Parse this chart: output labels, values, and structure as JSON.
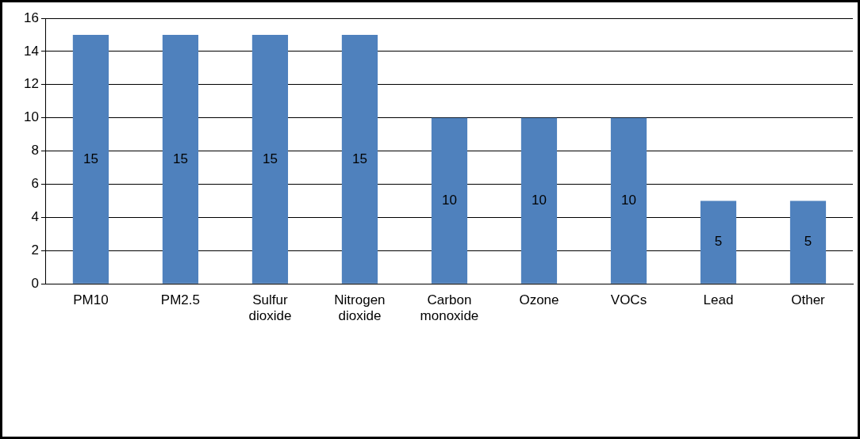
{
  "chart_data": {
    "type": "bar",
    "categories": [
      "PM10",
      "PM2.5",
      "Sulfur dioxide",
      "Nitrogen dioxide",
      "Carbon monoxide",
      "Ozone",
      "VOCs",
      "Lead",
      "Other"
    ],
    "values": [
      15,
      15,
      15,
      15,
      10,
      10,
      10,
      5,
      5
    ],
    "color": "#4f81bd",
    "ylim": [
      0,
      16
    ],
    "yticks": [
      0,
      2,
      4,
      6,
      8,
      10,
      12,
      14,
      16
    ],
    "grid": "y",
    "data_labels": true,
    "legend": false
  }
}
